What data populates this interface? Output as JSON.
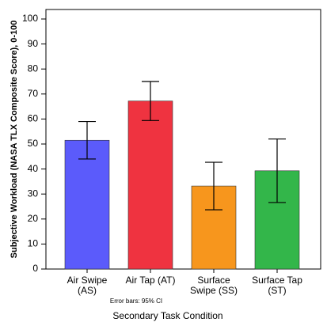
{
  "chart_data": {
    "type": "bar",
    "categories": [
      [
        "Air Swipe",
        "(AS)"
      ],
      [
        "Air Tap (AT)"
      ],
      [
        "Surface",
        "Swipe (SS)"
      ],
      [
        "Surface Tap",
        "(ST)"
      ]
    ],
    "values": [
      51.5,
      67.2,
      33.2,
      39.3
    ],
    "errors": [
      7.5,
      7.8,
      9.5,
      12.7
    ],
    "colors": [
      "#5b5bfb",
      "#ef3340",
      "#f7961d",
      "#33b64a"
    ],
    "ylim": [
      0,
      100
    ],
    "yticks": [
      0,
      10,
      20,
      30,
      40,
      50,
      60,
      70,
      80,
      90,
      100
    ],
    "ylabel": "Subjective Workload (NASA TLX Composite Score), 0-100",
    "xlabel": "Secondary Task Condition",
    "note": "Error bars: 95% CI"
  }
}
